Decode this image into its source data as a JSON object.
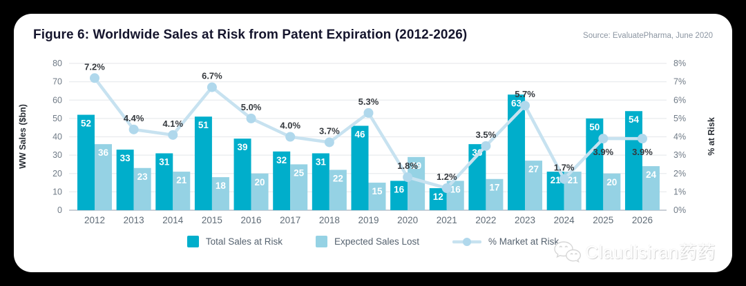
{
  "figure": {
    "title": "Figure 6: Worldwide Sales at Risk from Patent Expiration (2012-2026)",
    "source": "Source: EvaluatePharma, June 2020"
  },
  "chart_data": {
    "type": "bar",
    "title": "Worldwide Sales at Risk from Patent Expiration (2012-2026)",
    "categories": [
      "2012",
      "2013",
      "2014",
      "2015",
      "2016",
      "2017",
      "2018",
      "2019",
      "2020",
      "2021",
      "2022",
      "2023",
      "2024",
      "2025",
      "2026"
    ],
    "series": [
      {
        "name": "Total Sales at Risk",
        "type": "bar",
        "color": "#00aecb",
        "values": [
          52,
          33,
          31,
          51,
          39,
          32,
          31,
          46,
          16,
          12,
          36,
          63,
          21,
          50,
          54
        ]
      },
      {
        "name": "Expected Sales Lost",
        "type": "bar",
        "color": "#95d2e4",
        "values": [
          36,
          23,
          21,
          18,
          20,
          25,
          22,
          15,
          29,
          16,
          17,
          27,
          21,
          20,
          24
        ]
      },
      {
        "name": "% Market at Risk",
        "type": "line",
        "color": "#c7e2f0",
        "marker_color": "#b0d8ec",
        "values": [
          7.2,
          4.4,
          4.1,
          6.7,
          5.0,
          4.0,
          3.7,
          5.3,
          1.8,
          1.2,
          3.5,
          5.7,
          1.7,
          3.9,
          3.9
        ],
        "point_labels": [
          "7.2%",
          "4.4%",
          "4.1%",
          "6.7%",
          "5.0%",
          "4.0%",
          "3.7%",
          "5.3%",
          "1.8%",
          "1.2%",
          "3.5%",
          "5.7%",
          "1.7%",
          "3.9%",
          "3.9%"
        ],
        "labels_below_indices": [
          13,
          14
        ]
      }
    ],
    "y_left": {
      "label": "WW Sales ($bn)",
      "min": 0,
      "max": 80,
      "step": 10,
      "ticks": [
        "0",
        "10",
        "20",
        "30",
        "40",
        "50",
        "60",
        "70",
        "80"
      ]
    },
    "y_right": {
      "label": "% at Risk",
      "min": 0,
      "max": 8,
      "step": 1,
      "ticks": [
        "0%",
        "1%",
        "2%",
        "3%",
        "4%",
        "5%",
        "6%",
        "7%",
        "8%"
      ]
    },
    "grid": true,
    "legend_position": "bottom",
    "bar_label_color": "#ffffff",
    "grid_color": "#e9ebee",
    "baseline_color": "#c9ced6",
    "tick_color": "#6f7a86",
    "point_label_color": "#35393e"
  },
  "legend": {
    "items": [
      {
        "label": "Total Sales at Risk",
        "swatch": "square",
        "color": "#00aecb"
      },
      {
        "label": "Expected Sales Lost",
        "swatch": "square",
        "color": "#95d2e4"
      },
      {
        "label": "% Market at Risk",
        "swatch": "line",
        "color": "#c7e2f0",
        "marker_color": "#b0d8ec"
      }
    ]
  },
  "watermark": {
    "icon": "wechat-icon",
    "text": "Claudisiran药药"
  }
}
